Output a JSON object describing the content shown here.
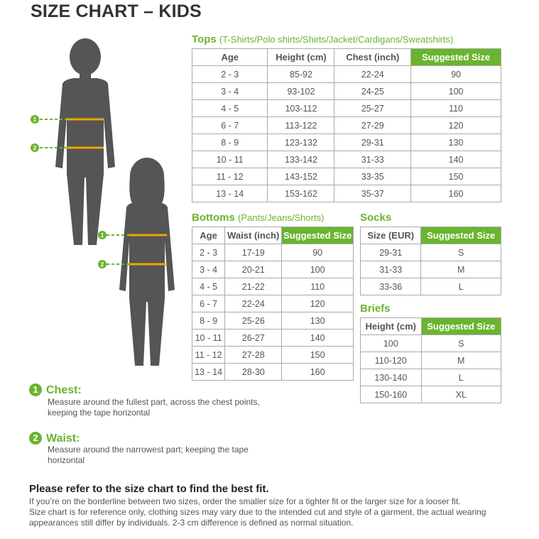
{
  "title": "SIZE CHART – KIDS",
  "colors": {
    "accent": "#6ab42e",
    "silhouette": "#555555",
    "measure_line": "#f0a500"
  },
  "tops": {
    "title": "Tops",
    "subtitle": "(T-Shirts/Polo shirts/Shirts/Jacket/Cardigans/Sweatshirts)",
    "headers": [
      "Age",
      "Height (cm)",
      "Chest (inch)",
      "Suggested Size"
    ],
    "rows": [
      [
        "2 - 3",
        "85-92",
        "22-24",
        "90"
      ],
      [
        "3 - 4",
        "93-102",
        "24-25",
        "100"
      ],
      [
        "4 - 5",
        "103-112",
        "25-27",
        "110"
      ],
      [
        "6 - 7",
        "113-122",
        "27-29",
        "120"
      ],
      [
        "8 - 9",
        "123-132",
        "29-31",
        "130"
      ],
      [
        "10 - 11",
        "133-142",
        "31-33",
        "140"
      ],
      [
        "11 - 12",
        "143-152",
        "33-35",
        "150"
      ],
      [
        "13 - 14",
        "153-162",
        "35-37",
        "160"
      ]
    ]
  },
  "bottoms": {
    "title": "Bottoms",
    "subtitle": "(Pants/Jeans/Shorts)",
    "headers": [
      "Age",
      "Waist (inch)",
      "Suggested Size"
    ],
    "rows": [
      [
        "2 - 3",
        "17-19",
        "90"
      ],
      [
        "3 - 4",
        "20-21",
        "100"
      ],
      [
        "4 - 5",
        "21-22",
        "110"
      ],
      [
        "6 - 7",
        "22-24",
        "120"
      ],
      [
        "8 - 9",
        "25-26",
        "130"
      ],
      [
        "10 - 11",
        "26-27",
        "140"
      ],
      [
        "11 - 12",
        "27-28",
        "150"
      ],
      [
        "13 - 14",
        "28-30",
        "160"
      ]
    ]
  },
  "socks": {
    "title": "Socks",
    "headers": [
      "Size (EUR)",
      "Suggested Size"
    ],
    "rows": [
      [
        "29-31",
        "S"
      ],
      [
        "31-33",
        "M"
      ],
      [
        "33-36",
        "L"
      ]
    ]
  },
  "briefs": {
    "title": "Briefs",
    "headers": [
      "Height (cm)",
      "Suggested Size"
    ],
    "rows": [
      [
        "100",
        "S"
      ],
      [
        "110-120",
        "M"
      ],
      [
        "130-140",
        "L"
      ],
      [
        "150-160",
        "XL"
      ]
    ]
  },
  "measures": [
    {
      "num": "1",
      "label": "Chest:",
      "desc": "Measure around the fullest part, across the chest points, keeping the tape horizontal"
    },
    {
      "num": "2",
      "label": "Waist:",
      "desc": "Measure around the narrowest part; keeping the tape horizontal"
    }
  ],
  "note": {
    "heading": "Please refer to the size chart to find the best fit.",
    "lines": [
      "If you’re on the borderline between two sizes, order the smaller size for a tighter fit or the larger size for a looser fit.",
      "Size chart is for reference only, clothing sizes may vary due to the intended cut and style of a garment, the actual wearing appearances still differ by individuals. 2-3 cm difference is defined as normal situation."
    ]
  }
}
